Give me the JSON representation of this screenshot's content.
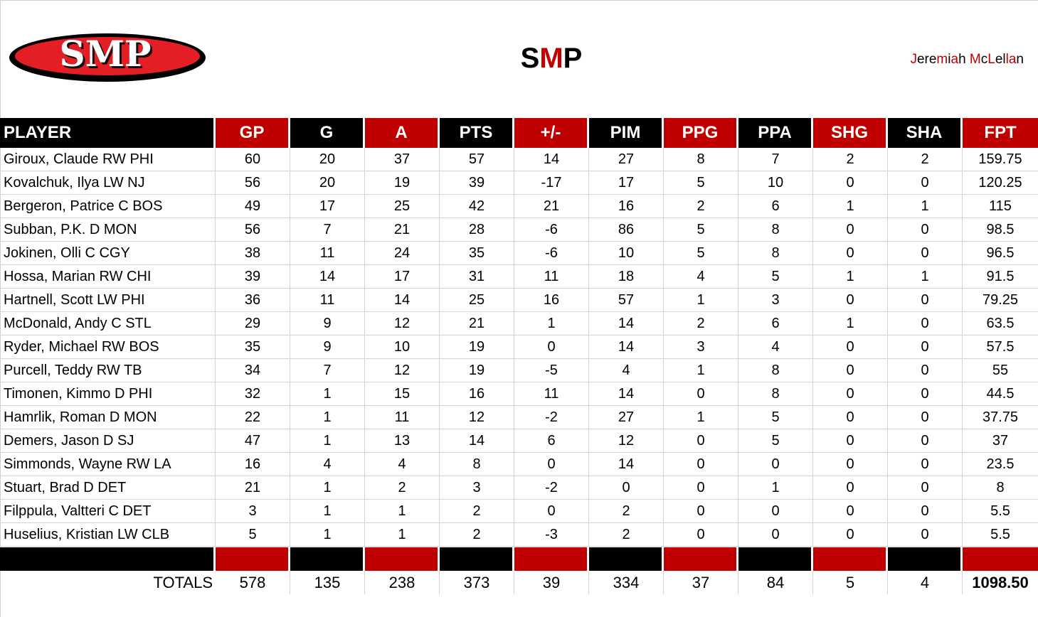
{
  "header": {
    "logo_text": "SMP",
    "title_parts": [
      "S",
      "M",
      "P"
    ],
    "author_parts": [
      {
        "t": "J",
        "c": "r"
      },
      {
        "t": "ere",
        "c": "k"
      },
      {
        "t": "m",
        "c": "r"
      },
      {
        "t": "i",
        "c": "k"
      },
      {
        "t": "a",
        "c": "r"
      },
      {
        "t": "h ",
        "c": "k"
      },
      {
        "t": "M",
        "c": "r"
      },
      {
        "t": "c",
        "c": "k"
      },
      {
        "t": "L",
        "c": "r"
      },
      {
        "t": "el",
        "c": "k"
      },
      {
        "t": "la",
        "c": "r"
      },
      {
        "t": "n",
        "c": "k"
      }
    ],
    "author": "Jeremiah McLellan"
  },
  "colors": {
    "red": "#c00000",
    "black": "#000000",
    "grid": "#d4d4d4"
  },
  "table": {
    "columns": [
      "PLAYER",
      "GP",
      "G",
      "A",
      "PTS",
      "+/-",
      "PIM",
      "PPG",
      "PPA",
      "SHG",
      "SHA",
      "FPT"
    ],
    "column_colors": [
      "black",
      "red",
      "black",
      "red",
      "black",
      "red",
      "black",
      "red",
      "black",
      "red",
      "black",
      "red"
    ],
    "rows": [
      [
        "Giroux, Claude RW PHI",
        "60",
        "20",
        "37",
        "57",
        "14",
        "27",
        "8",
        "7",
        "2",
        "2",
        "159.75"
      ],
      [
        "Kovalchuk, Ilya LW NJ",
        "56",
        "20",
        "19",
        "39",
        "-17",
        "17",
        "5",
        "10",
        "0",
        "0",
        "120.25"
      ],
      [
        "Bergeron, Patrice C BOS",
        "49",
        "17",
        "25",
        "42",
        "21",
        "16",
        "2",
        "6",
        "1",
        "1",
        "115"
      ],
      [
        "Subban, P.K. D MON",
        "56",
        "7",
        "21",
        "28",
        "-6",
        "86",
        "5",
        "8",
        "0",
        "0",
        "98.5"
      ],
      [
        "Jokinen, Olli C CGY",
        "38",
        "11",
        "24",
        "35",
        "-6",
        "10",
        "5",
        "8",
        "0",
        "0",
        "96.5"
      ],
      [
        "Hossa, Marian RW CHI",
        "39",
        "14",
        "17",
        "31",
        "11",
        "18",
        "4",
        "5",
        "1",
        "1",
        "91.5"
      ],
      [
        "Hartnell, Scott LW PHI",
        "36",
        "11",
        "14",
        "25",
        "16",
        "57",
        "1",
        "3",
        "0",
        "0",
        "79.25"
      ],
      [
        "McDonald, Andy C STL",
        "29",
        "9",
        "12",
        "21",
        "1",
        "14",
        "2",
        "6",
        "1",
        "0",
        "63.5"
      ],
      [
        "Ryder, Michael RW BOS",
        "35",
        "9",
        "10",
        "19",
        "0",
        "14",
        "3",
        "4",
        "0",
        "0",
        "57.5"
      ],
      [
        "Purcell, Teddy RW TB",
        "34",
        "7",
        "12",
        "19",
        "-5",
        "4",
        "1",
        "8",
        "0",
        "0",
        "55"
      ],
      [
        "Timonen, Kimmo D PHI",
        "32",
        "1",
        "15",
        "16",
        "11",
        "14",
        "0",
        "8",
        "0",
        "0",
        "44.5"
      ],
      [
        "Hamrlik, Roman D MON",
        "22",
        "1",
        "11",
        "12",
        "-2",
        "27",
        "1",
        "5",
        "0",
        "0",
        "37.75"
      ],
      [
        "Demers, Jason D SJ",
        "47",
        "1",
        "13",
        "14",
        "6",
        "12",
        "0",
        "5",
        "0",
        "0",
        "37"
      ],
      [
        "Simmonds, Wayne RW LA",
        "16",
        "4",
        "4",
        "8",
        "0",
        "14",
        "0",
        "0",
        "0",
        "0",
        "23.5"
      ],
      [
        "Stuart, Brad D DET",
        "21",
        "1",
        "2",
        "3",
        "-2",
        "0",
        "0",
        "1",
        "0",
        "0",
        "8"
      ],
      [
        "Filppula, Valtteri C DET",
        "3",
        "1",
        "1",
        "2",
        "0",
        "2",
        "0",
        "0",
        "0",
        "0",
        "5.5"
      ],
      [
        "Huselius, Kristian LW CLB",
        "5",
        "1",
        "1",
        "2",
        "-3",
        "2",
        "0",
        "0",
        "0",
        "0",
        "5.5"
      ]
    ],
    "totals": [
      "TOTALS",
      "578",
      "135",
      "238",
      "373",
      "39",
      "334",
      "37",
      "84",
      "5",
      "4",
      "1098.50"
    ]
  }
}
